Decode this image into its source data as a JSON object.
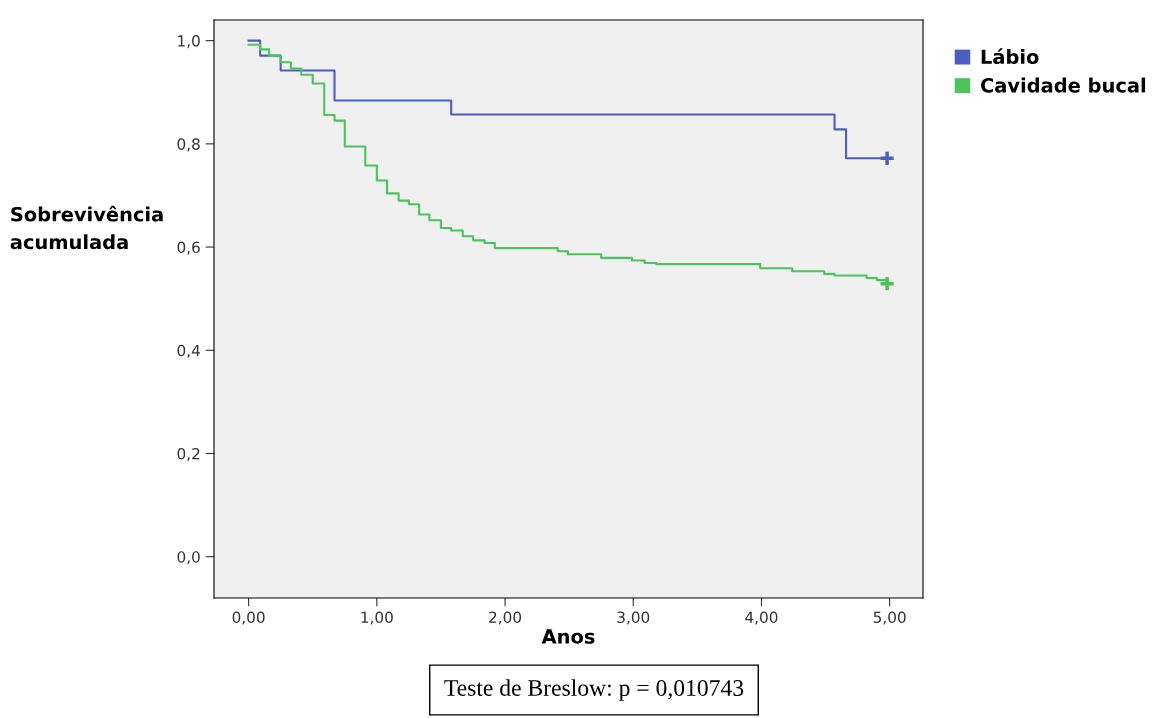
{
  "chart_data": {
    "type": "step",
    "xlabel": "Anos",
    "ylabel": "Sobrevivência\nacumulada",
    "series": [
      {
        "name": "Lábio",
        "color": "#4a5fc1",
        "x": [
          0,
          0.09,
          0.25,
          0.67,
          1.58,
          4.57,
          4.66,
          4.98
        ],
        "values": [
          1.0,
          0.971,
          0.942,
          0.884,
          0.857,
          0.828,
          0.772,
          0.772
        ]
      },
      {
        "name": "Cavidade bucal",
        "color": "#4cc45c",
        "x": [
          0,
          0.09,
          0.16,
          0.25,
          0.33,
          0.41,
          0.5,
          0.59,
          0.67,
          0.75,
          0.91,
          1.0,
          1.08,
          1.17,
          1.25,
          1.33,
          1.41,
          1.5,
          1.58,
          1.67,
          1.75,
          1.84,
          1.92,
          2.41,
          2.49,
          2.75,
          2.99,
          3.09,
          3.18,
          3.99,
          4.24,
          4.49,
          4.57,
          4.82,
          4.9,
          4.98
        ],
        "values": [
          0.992,
          0.983,
          0.971,
          0.958,
          0.946,
          0.934,
          0.917,
          0.856,
          0.845,
          0.795,
          0.758,
          0.729,
          0.704,
          0.69,
          0.683,
          0.663,
          0.652,
          0.637,
          0.632,
          0.621,
          0.613,
          0.608,
          0.598,
          0.592,
          0.586,
          0.579,
          0.574,
          0.569,
          0.567,
          0.559,
          0.553,
          0.548,
          0.545,
          0.54,
          0.536,
          0.536
        ]
      },
      {
        "type": "scatter",
        "marker": "cross",
        "color": "#4a5fc1",
        "x": [
          4.98
        ],
        "values": [
          0.772
        ]
      },
      {
        "type": "scatter",
        "marker": "cross",
        "color": "#4cc45c",
        "x": [
          4.98
        ],
        "values": [
          0.529
        ]
      }
    ],
    "xlim": [
      -0.27,
      5.26
    ],
    "ylim": [
      -0.08,
      1.04
    ],
    "xticks": [
      {
        "value": 0,
        "label": "0,00"
      },
      {
        "value": 1,
        "label": "1,00"
      },
      {
        "value": 2,
        "label": "2,00"
      },
      {
        "value": 3,
        "label": "3,00"
      },
      {
        "value": 4,
        "label": "4,00"
      },
      {
        "value": 5,
        "label": "5,00"
      }
    ],
    "yticks": [
      {
        "value": 0,
        "label": "0,0"
      },
      {
        "value": 0.2,
        "label": "0,2"
      },
      {
        "value": 0.4,
        "label": "0,4"
      },
      {
        "value": 0.6,
        "label": "0,6"
      },
      {
        "value": 0.8,
        "label": "0,8"
      },
      {
        "value": 1.0,
        "label": "1,0"
      }
    ],
    "legend": "top right",
    "grid": false,
    "annotations": [
      "Teste de Breslow: p = 0,010743"
    ]
  }
}
